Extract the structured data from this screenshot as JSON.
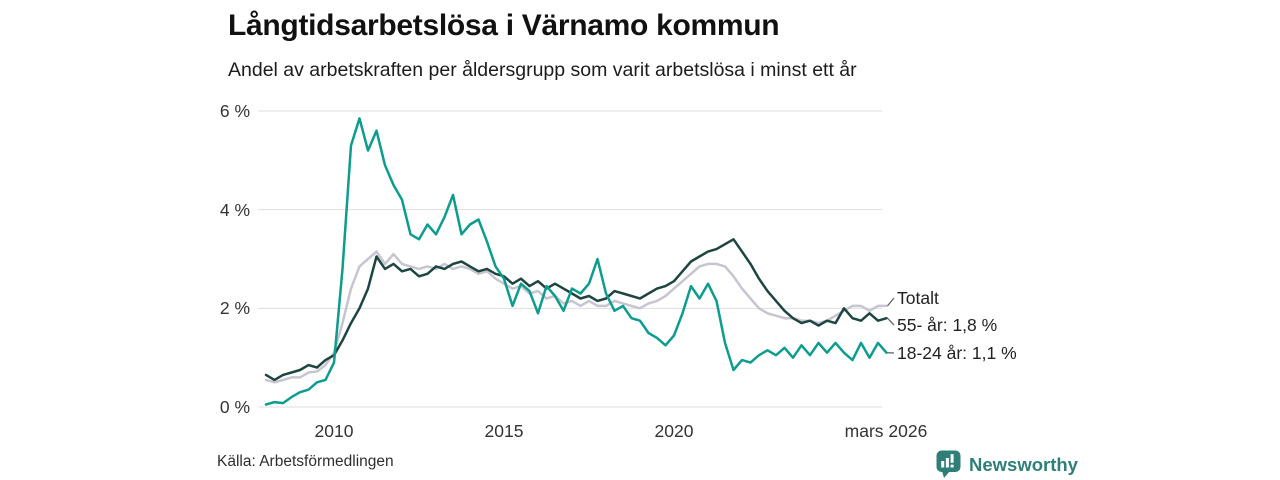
{
  "header": {
    "title": "Långtidsarbetslösa i Värnamo kommun",
    "subtitle": "Andel av arbetskraften per åldersgrupp som varit arbetslösa i minst ett år"
  },
  "footer": {
    "source": "Källa: Arbetsförmedlingen",
    "brand": "Newsworthy"
  },
  "colors": {
    "grid": "#dedede",
    "connector": "#666666",
    "brand_teal": "#2f7f78"
  },
  "chart_data": {
    "type": "line",
    "title": "Långtidsarbetslösa i Värnamo kommun",
    "subtitle": "Andel av arbetskraften per åldersgrupp som varit arbetslösa i minst ett år",
    "xlabel": "",
    "ylabel": "",
    "x_start": 2008,
    "x_step": 0.25,
    "x_end": 2026.25,
    "xlim": [
      2008,
      2026.25
    ],
    "ylim": [
      0,
      6
    ],
    "grid": "horizontal",
    "legend_position": "right-end-labels",
    "x_tick_values": [
      2010,
      2015,
      2020,
      2026.1
    ],
    "x_tick_labels": [
      "2010",
      "2015",
      "2020",
      "mars 2026"
    ],
    "y_tick_values": [
      6,
      4,
      2,
      0
    ],
    "y_tick_labels": [
      "6 %",
      "4 %",
      "2 %",
      "0 %"
    ],
    "series": [
      {
        "name": "Totalt",
        "label": "Totalt",
        "color": "#c6c5d0",
        "values": [
          0.55,
          0.5,
          0.55,
          0.6,
          0.6,
          0.7,
          0.72,
          0.85,
          1.1,
          1.7,
          2.4,
          2.85,
          3.0,
          3.15,
          2.9,
          3.1,
          2.9,
          2.85,
          2.8,
          2.85,
          2.8,
          2.9,
          2.8,
          2.85,
          2.8,
          2.7,
          2.75,
          2.6,
          2.5,
          2.4,
          2.45,
          2.3,
          2.35,
          2.2,
          2.25,
          2.1,
          2.15,
          2.05,
          2.15,
          2.05,
          2.05,
          2.15,
          2.1,
          2.05,
          2.0,
          2.1,
          2.15,
          2.25,
          2.4,
          2.55,
          2.7,
          2.85,
          2.9,
          2.9,
          2.85,
          2.65,
          2.4,
          2.2,
          2.0,
          1.9,
          1.85,
          1.8,
          1.8,
          1.75,
          1.75,
          1.7,
          1.75,
          1.85,
          1.95,
          2.05,
          2.05,
          1.95,
          2.05,
          2.05
        ]
      },
      {
        "name": "55- år",
        "label": "55- år: 1,8 %",
        "color": "#1f4540",
        "values": [
          0.65,
          0.55,
          0.65,
          0.7,
          0.75,
          0.85,
          0.8,
          0.95,
          1.05,
          1.35,
          1.7,
          2.0,
          2.4,
          3.05,
          2.8,
          2.9,
          2.75,
          2.8,
          2.65,
          2.7,
          2.85,
          2.8,
          2.9,
          2.95,
          2.85,
          2.75,
          2.8,
          2.7,
          2.65,
          2.5,
          2.6,
          2.45,
          2.55,
          2.4,
          2.5,
          2.4,
          2.3,
          2.2,
          2.25,
          2.15,
          2.2,
          2.35,
          2.3,
          2.25,
          2.2,
          2.3,
          2.4,
          2.45,
          2.55,
          2.75,
          2.95,
          3.05,
          3.15,
          3.2,
          3.3,
          3.4,
          3.15,
          2.9,
          2.6,
          2.35,
          2.15,
          1.95,
          1.8,
          1.7,
          1.75,
          1.65,
          1.75,
          1.7,
          2.0,
          1.8,
          1.75,
          1.9,
          1.75,
          1.8
        ]
      },
      {
        "name": "18-24 år",
        "label": "18-24 år: 1,1 %",
        "color": "#0d9c8d",
        "values": [
          0.05,
          0.1,
          0.08,
          0.2,
          0.3,
          0.35,
          0.5,
          0.55,
          0.9,
          2.8,
          5.3,
          5.85,
          5.2,
          5.6,
          4.9,
          4.5,
          4.2,
          3.5,
          3.4,
          3.7,
          3.5,
          3.85,
          4.3,
          3.5,
          3.7,
          3.8,
          3.35,
          2.85,
          2.6,
          2.05,
          2.5,
          2.35,
          1.9,
          2.45,
          2.25,
          1.95,
          2.4,
          2.3,
          2.5,
          3.0,
          2.3,
          1.95,
          2.05,
          1.8,
          1.75,
          1.5,
          1.4,
          1.25,
          1.45,
          1.9,
          2.45,
          2.2,
          2.5,
          2.15,
          1.3,
          0.75,
          0.95,
          0.9,
          1.05,
          1.15,
          1.05,
          1.2,
          1.0,
          1.25,
          1.05,
          1.3,
          1.1,
          1.3,
          1.1,
          0.95,
          1.3,
          1.0,
          1.3,
          1.1
        ]
      }
    ]
  }
}
